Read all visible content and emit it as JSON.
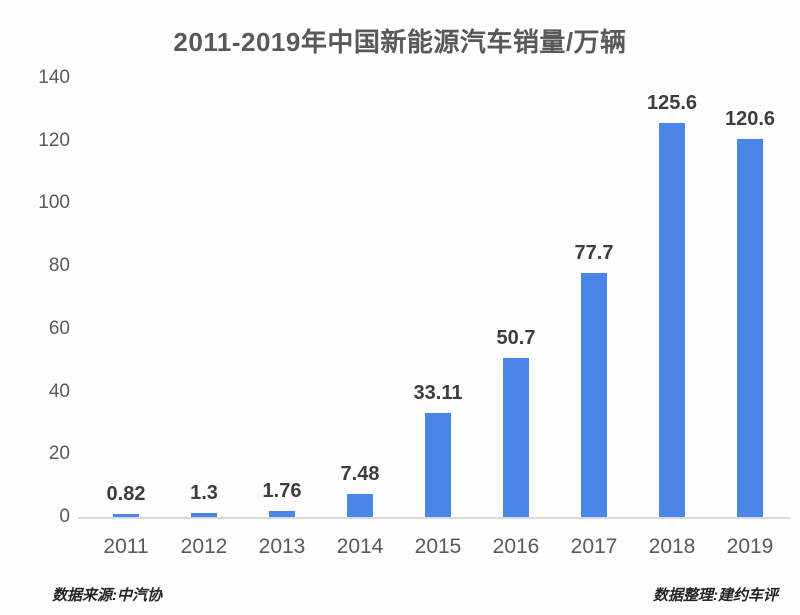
{
  "title": "2011-2019年中国新能源汽车销量/万辆",
  "footer": {
    "source_left": "数据来源:中汽协",
    "source_right": "数据整理:建约车评"
  },
  "colors": {
    "bar": "#4a86e8",
    "axis_line": "#d9d9d9",
    "axis_text": "#595959",
    "title_text": "#595959",
    "data_label": "#3d3d3d"
  },
  "chart_data": {
    "type": "bar",
    "title": "2011-2019年中国新能源汽车销量/万辆",
    "categories": [
      "2011",
      "2012",
      "2013",
      "2014",
      "2015",
      "2016",
      "2017",
      "2018",
      "2019"
    ],
    "values": [
      0.82,
      1.3,
      1.76,
      7.48,
      33.11,
      50.7,
      77.7,
      125.6,
      120.6
    ],
    "data_labels": [
      "0.82",
      "1.3",
      "1.76",
      "7.48",
      "33.11",
      "50.7",
      "77.7",
      "125.6",
      "120.6"
    ],
    "xlabel": "",
    "ylabel": "",
    "unit": "万辆",
    "ylim": [
      0,
      140
    ],
    "yticks": [
      0,
      20,
      40,
      60,
      80,
      100,
      120,
      140
    ],
    "grid": false,
    "legend": false,
    "bar_color": "#4a86e8"
  }
}
